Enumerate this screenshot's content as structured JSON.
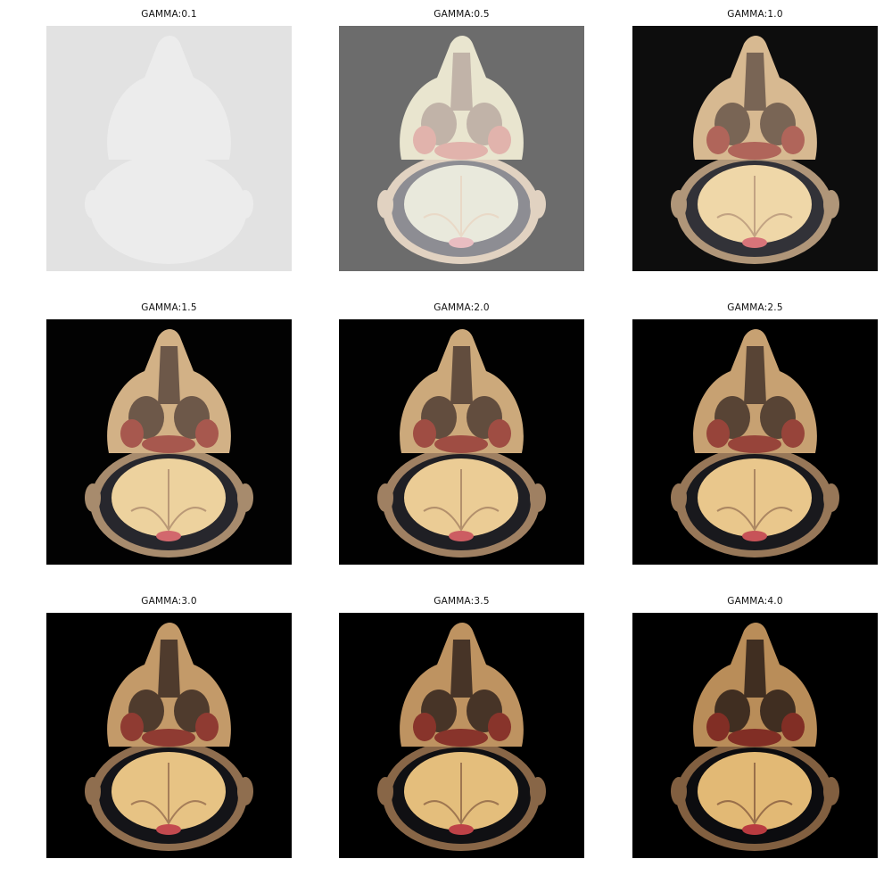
{
  "panels": [
    {
      "title": "GAMMA:0.1",
      "gamma": 0.1,
      "background": "#e2e2e2"
    },
    {
      "title": "GAMMA:0.5",
      "gamma": 0.5,
      "background": "#6c6c6c"
    },
    {
      "title": "GAMMA:1.0",
      "gamma": 1.0,
      "background": "#0d0d0d"
    },
    {
      "title": "GAMMA:1.5",
      "gamma": 1.5,
      "background": "#020202"
    },
    {
      "title": "GAMMA:2.0",
      "gamma": 2.0,
      "background": "#010101"
    },
    {
      "title": "GAMMA:2.5",
      "gamma": 2.5,
      "background": "#000000"
    },
    {
      "title": "GAMMA:3.0",
      "gamma": 3.0,
      "background": "#000000"
    },
    {
      "title": "GAMMA:3.5",
      "gamma": 3.5,
      "background": "#000000"
    },
    {
      "title": "GAMMA:4.0",
      "gamma": 4.0,
      "background": "#000000"
    }
  ]
}
